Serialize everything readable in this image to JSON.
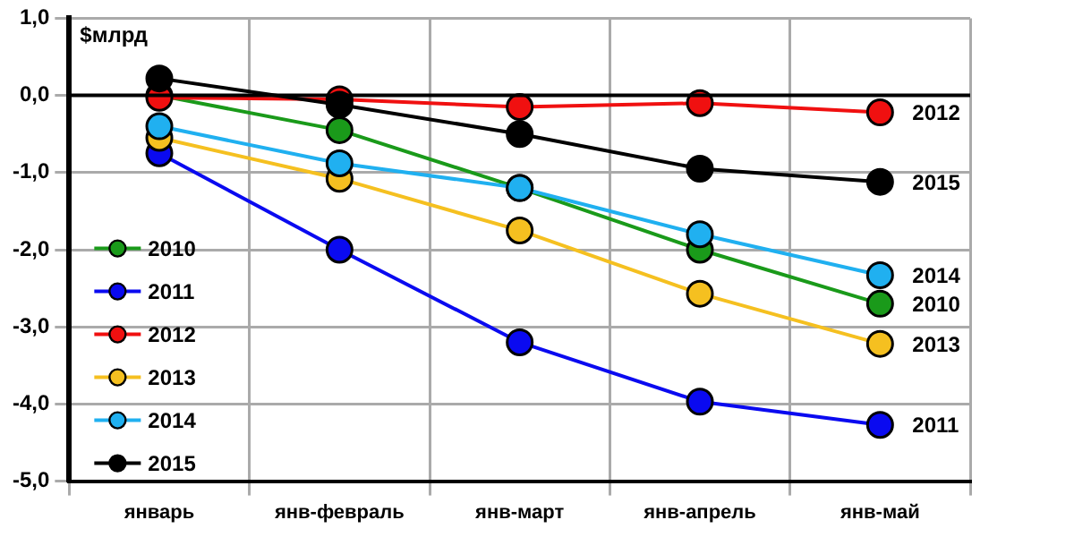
{
  "chart_data": {
    "type": "line",
    "ylabel": "$млрд",
    "categories": [
      "январь",
      "янв-февраль",
      "янв-март",
      "янв-апрель",
      "янв-май"
    ],
    "series": [
      {
        "name": "2010",
        "color": "#1a9a1a",
        "values": [
          0.0,
          -0.45,
          -1.2,
          -2.0,
          -2.7
        ]
      },
      {
        "name": "2011",
        "color": "#0a0af0",
        "values": [
          -0.75,
          -2.0,
          -3.2,
          -3.97,
          -4.27
        ]
      },
      {
        "name": "2012",
        "color": "#f01010",
        "values": [
          -0.03,
          -0.05,
          -0.15,
          -0.1,
          -0.22
        ]
      },
      {
        "name": "2013",
        "color": "#f5c020",
        "values": [
          -0.55,
          -1.08,
          -1.75,
          -2.57,
          -3.22
        ]
      },
      {
        "name": "2014",
        "color": "#20b0f0",
        "values": [
          -0.4,
          -0.88,
          -1.2,
          -1.8,
          -2.33
        ]
      },
      {
        "name": "2015",
        "color": "#000000",
        "values": [
          0.22,
          -0.12,
          -0.5,
          -0.95,
          -1.12
        ]
      }
    ],
    "ylim": [
      -5,
      1
    ],
    "yticks": [
      {
        "value": 1,
        "label": "1,0"
      },
      {
        "value": 0,
        "label": "0,0"
      },
      {
        "value": -1,
        "label": "-1,0"
      },
      {
        "value": -2,
        "label": "-2,0"
      },
      {
        "value": -3,
        "label": "-3,0"
      },
      {
        "value": -4,
        "label": "-4,0"
      },
      {
        "value": -5,
        "label": "-5,0"
      }
    ],
    "grid": true,
    "legend": "bottom left",
    "marker": "circle",
    "line_style": "solid"
  }
}
